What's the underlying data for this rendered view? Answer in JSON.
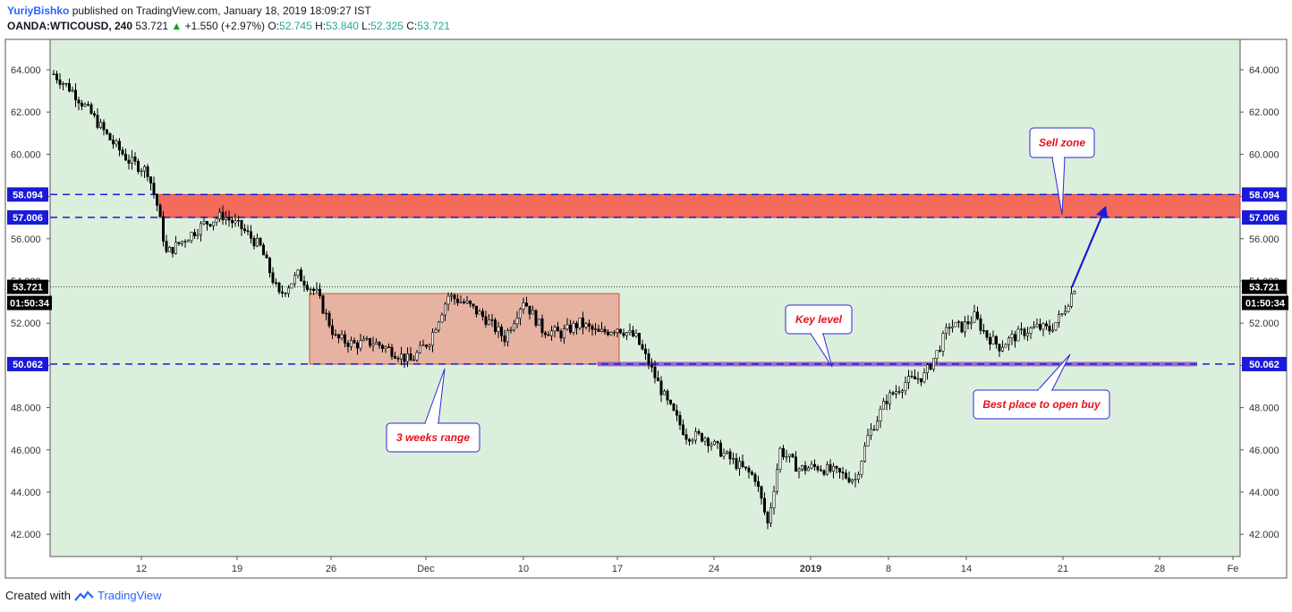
{
  "header": {
    "author": "YuriyBishko",
    "published": "published on TradingView.com, January 18, 2019 18:09:27 IST",
    "symbol": "OANDA:WTICOUSD, 240",
    "last": "53.721",
    "change": "+1.550 (+2.97%)",
    "o_label": "O:",
    "o_value": "52.745",
    "h_label": "H:",
    "h_value": "53.840",
    "l_label": "L:",
    "l_value": "52.325",
    "c_label": "C:",
    "c_value": "53.721"
  },
  "footer": {
    "created_with": "Created with",
    "brand": "TradingView"
  },
  "colors": {
    "background": "#dcefdc",
    "sell_zone": "#f26b5b",
    "range_box": "#e8a898",
    "key_level": "#9055c4",
    "level_line": "#1a1ad8",
    "annotation_border": "#2a2ad8",
    "annotation_text": "#e8101e",
    "candle": "#000000"
  },
  "chart_data": {
    "type": "candlestick",
    "ylim": [
      41,
      65.5
    ],
    "y_ticks": [
      "42.000",
      "44.000",
      "46.000",
      "48.000",
      "50.000",
      "52.000",
      "54.000",
      "56.000",
      "58.000",
      "60.000",
      "62.000",
      "64.000"
    ],
    "y_tick_values": [
      42,
      44,
      46,
      48,
      50,
      52,
      54,
      56,
      58,
      60,
      62,
      64
    ],
    "x_ticks": [
      "12",
      "19",
      "26",
      "Dec",
      "10",
      "17",
      "24",
      "2019",
      "8",
      "14",
      "21",
      "28",
      "Fe"
    ],
    "price_tags": [
      {
        "label": "58.094",
        "value": 58.094
      },
      {
        "label": "57.006",
        "value": 57.006
      },
      {
        "label": "53.721",
        "value": 53.721
      },
      {
        "label": "50.062",
        "value": 50.062
      }
    ],
    "countdown": "01:50:34",
    "levels": [
      {
        "name": "resistance-upper",
        "value": 58.094
      },
      {
        "name": "resistance-lower",
        "value": 57.006
      },
      {
        "name": "support",
        "value": 50.062
      }
    ],
    "sell_zone": {
      "low": 57.006,
      "high": 58.094
    },
    "range_box": {
      "low": 50.062,
      "high": 53.4
    },
    "key_level_band": {
      "value": 50.062
    },
    "annotations": [
      "Sell zone",
      "Key level",
      "3 weeks range",
      "Best place to open buy"
    ],
    "price_path": [
      [
        0,
        63.8
      ],
      [
        6,
        63.0
      ],
      [
        12,
        61.9
      ],
      [
        18,
        60.7
      ],
      [
        24,
        59.7
      ],
      [
        30,
        59.2
      ],
      [
        33,
        57.6
      ],
      [
        36,
        55.3
      ],
      [
        42,
        56.0
      ],
      [
        48,
        56.7
      ],
      [
        54,
        57.1
      ],
      [
        60,
        56.5
      ],
      [
        66,
        55.6
      ],
      [
        72,
        53.3
      ],
      [
        78,
        54.3
      ],
      [
        84,
        53.4
      ],
      [
        90,
        51.3
      ],
      [
        96,
        51.0
      ],
      [
        102,
        51.1
      ],
      [
        108,
        50.7
      ],
      [
        114,
        50.2
      ],
      [
        120,
        51.2
      ],
      [
        126,
        53.3
      ],
      [
        132,
        52.9
      ],
      [
        138,
        52.2
      ],
      [
        144,
        51.3
      ],
      [
        150,
        53.1
      ],
      [
        156,
        51.7
      ],
      [
        162,
        51.5
      ],
      [
        168,
        52.0
      ],
      [
        174,
        51.5
      ],
      [
        180,
        51.8
      ],
      [
        186,
        51.3
      ],
      [
        190,
        50.1
      ],
      [
        196,
        48.2
      ],
      [
        202,
        46.7
      ],
      [
        208,
        46.6
      ],
      [
        214,
        45.8
      ],
      [
        220,
        45.1
      ],
      [
        224,
        44.7
      ],
      [
        228,
        42.5
      ],
      [
        232,
        46.0
      ],
      [
        238,
        45.1
      ],
      [
        244,
        45.2
      ],
      [
        250,
        44.9
      ],
      [
        256,
        44.6
      ],
      [
        260,
        46.6
      ],
      [
        266,
        48.4
      ],
      [
        272,
        49.2
      ],
      [
        278,
        49.5
      ],
      [
        282,
        50.6
      ],
      [
        286,
        51.9
      ],
      [
        290,
        51.8
      ],
      [
        294,
        52.3
      ],
      [
        298,
        51.4
      ],
      [
        302,
        50.9
      ],
      [
        306,
        51.3
      ],
      [
        310,
        51.6
      ],
      [
        314,
        51.8
      ],
      [
        318,
        51.7
      ],
      [
        322,
        52.4
      ],
      [
        326,
        53.72
      ]
    ]
  }
}
